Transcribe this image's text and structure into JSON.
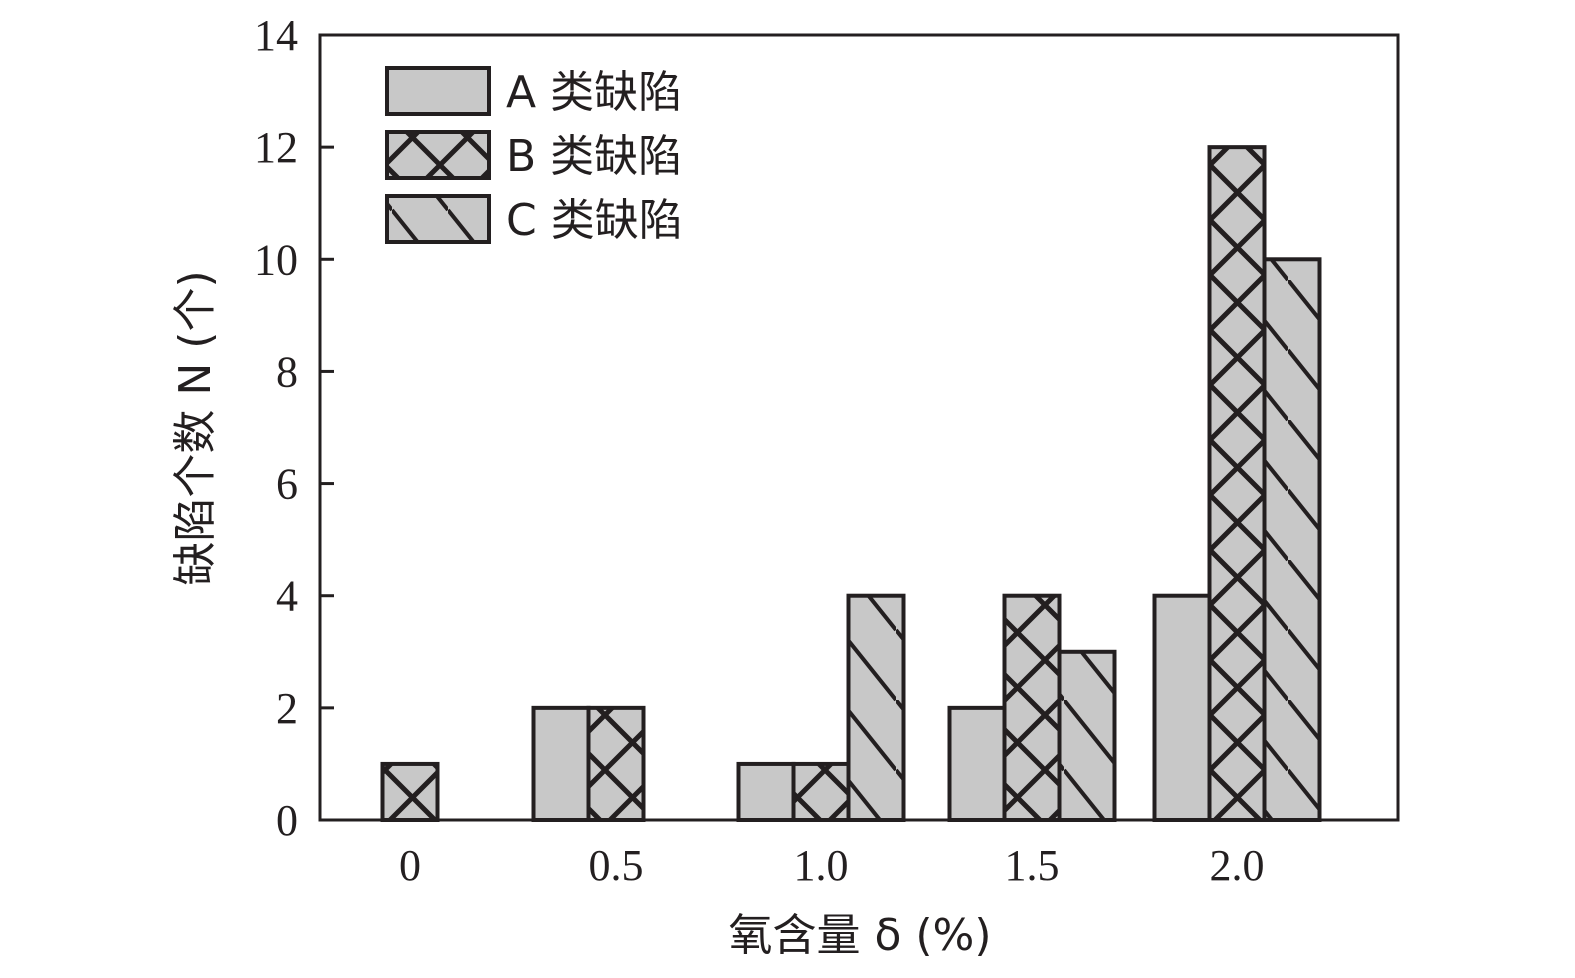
{
  "chart_data": {
    "type": "bar",
    "categories": [
      "0",
      "0.5",
      "1.0",
      "1.5",
      "2.0"
    ],
    "series": [
      {
        "name": "A 类缺陷",
        "values": [
          0,
          2,
          1,
          2,
          4
        ],
        "pattern": "plain"
      },
      {
        "name": "B 类缺陷",
        "values": [
          1,
          2,
          1,
          4,
          12
        ],
        "pattern": "crosshatch"
      },
      {
        "name": "C 类缺陷",
        "values": [
          0,
          0,
          4,
          3,
          10
        ],
        "pattern": "diagonal"
      }
    ],
    "xlabel": "氧含量 δ (%)",
    "ylabel": "缺陷个数 N (个)",
    "ylim": [
      0,
      14
    ],
    "yticks": [
      0,
      2,
      4,
      6,
      8,
      10,
      12,
      14
    ],
    "grid": false,
    "legend_position": "top-left",
    "colors": {
      "bar_fill": "#c8c8c8",
      "stroke": "#231f20"
    }
  }
}
